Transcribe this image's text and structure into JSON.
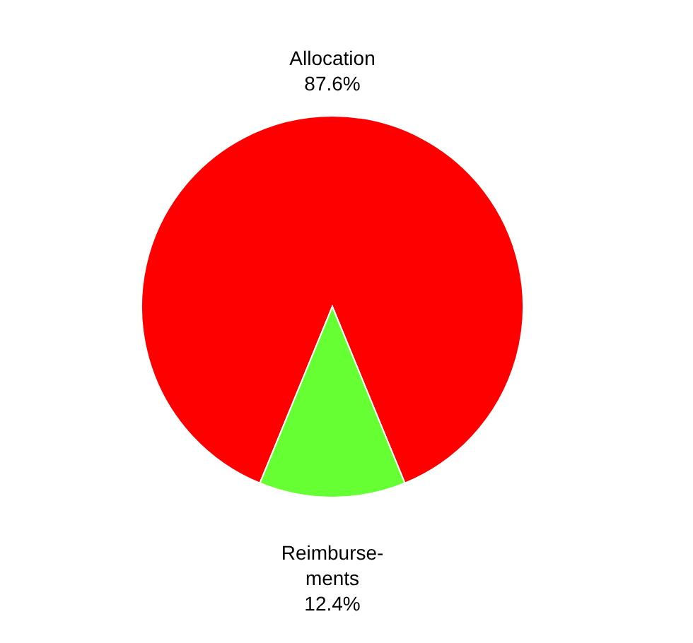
{
  "chart_data": {
    "type": "pie",
    "categories": [
      "Allocation",
      "Reimburse-ments"
    ],
    "values": [
      87.6,
      12.4
    ],
    "colors": [
      "#ff0000",
      "#66ff33"
    ],
    "value_labels": [
      "87.6%",
      "12.4%"
    ],
    "legend": false
  }
}
